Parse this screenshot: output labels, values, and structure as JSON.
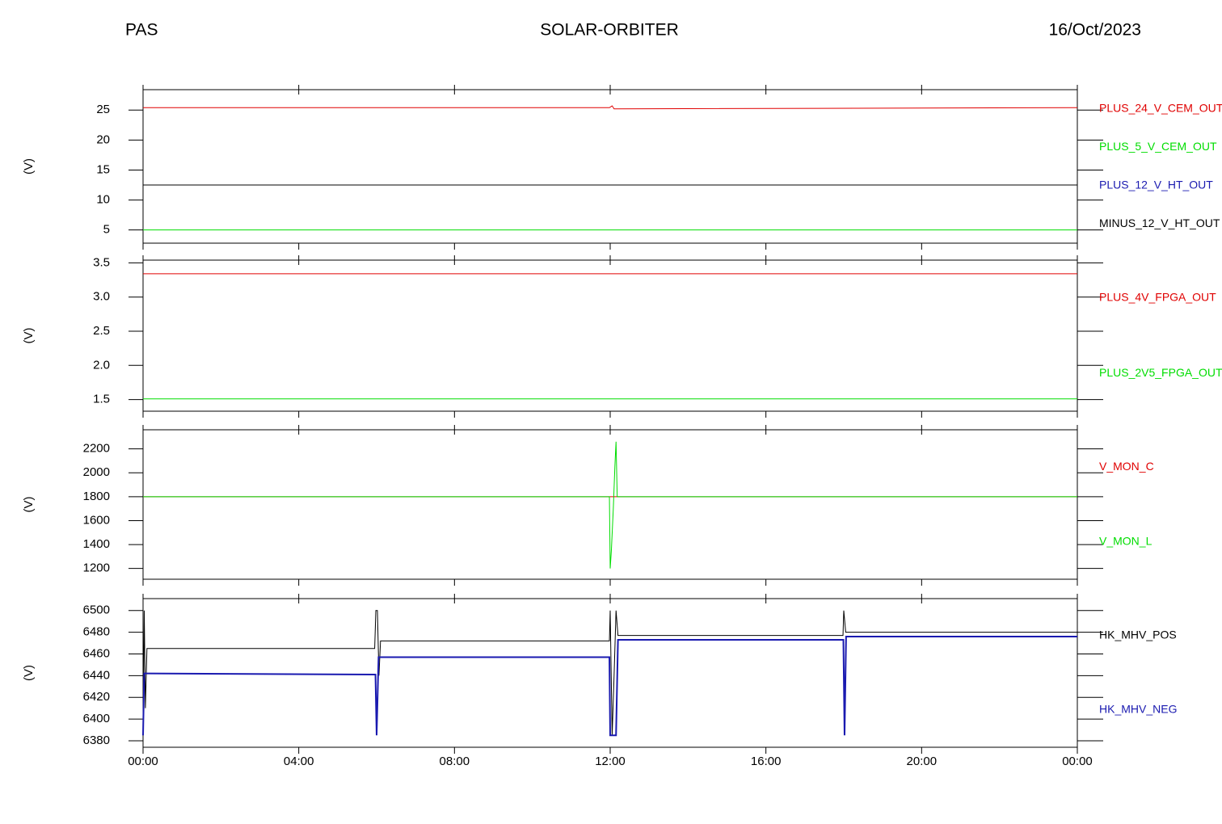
{
  "header": {
    "left": "PAS",
    "center": "SOLAR-ORBITER",
    "right": "16/Oct/2023"
  },
  "chart_data": [
    {
      "type": "line",
      "y_label": "(V)",
      "xlim": [
        0,
        24
      ],
      "xticks": [
        0,
        4,
        8,
        12,
        16,
        20,
        24
      ],
      "ylim": [
        2.8,
        28.4
      ],
      "yticks": [
        5,
        10,
        15,
        20,
        25
      ],
      "series": [
        {
          "name": "PLUS_24_V_CEM_OUT",
          "color": "#e00000",
          "x": [
            0,
            11.98,
            12.05,
            12.1,
            24
          ],
          "values": [
            25.4,
            25.4,
            25.7,
            25.2,
            25.4
          ]
        },
        {
          "name": "PLUS_5_V_CEM_OUT",
          "color": "#00dd00",
          "x": [
            0,
            24
          ],
          "values": [
            5.0,
            5.0
          ]
        },
        {
          "name": "PLUS_12_V_HT_OUT",
          "color": "#1a1ab0",
          "x": [
            0,
            24
          ],
          "values": [
            12.5,
            12.5
          ]
        },
        {
          "name": "MINUS_12_V_HT_OUT",
          "color": "#000000",
          "x": [
            0,
            24
          ],
          "values": [
            12.5,
            12.5
          ]
        }
      ]
    },
    {
      "type": "line",
      "y_label": "(V)",
      "xlim": [
        0,
        24
      ],
      "xticks": [
        0,
        4,
        8,
        12,
        16,
        20,
        24
      ],
      "ylim": [
        1.33,
        3.54
      ],
      "yticks": [
        1.5,
        {
          "value": 2,
          "label": "2.0"
        },
        2.5,
        {
          "value": 3,
          "label": "3.0"
        },
        3.5
      ],
      "series": [
        {
          "name": "PLUS_4V_FPGA_OUT",
          "color": "#e00000",
          "x": [
            0,
            24
          ],
          "values": [
            3.34,
            3.34
          ]
        },
        {
          "name": "PLUS_2V5_FPGA_OUT",
          "color": "#00dd00",
          "x": [
            0,
            24
          ],
          "values": [
            1.51,
            1.51
          ]
        }
      ]
    },
    {
      "type": "line",
      "y_label": "(V)",
      "xlim": [
        0,
        24
      ],
      "xticks": [
        0,
        4,
        8,
        12,
        16,
        20,
        24
      ],
      "ylim": [
        1110,
        2360
      ],
      "yticks": [
        1200,
        1400,
        1600,
        1800,
        2000,
        2200
      ],
      "series": [
        {
          "name": "V_MON_C",
          "color": "#e00000",
          "x": [
            0,
            24
          ],
          "values": [
            1800,
            1800
          ]
        },
        {
          "name": "V_MON_L",
          "color": "#00dd00",
          "x": [
            0,
            11.98,
            12.0,
            12.03,
            12.08,
            12.12,
            12.15,
            12.18,
            24
          ],
          "values": [
            1800,
            1800,
            1200,
            1350,
            1700,
            2050,
            2260,
            1800,
            1800
          ]
        }
      ]
    },
    {
      "type": "line",
      "y_label": "(V)",
      "xlim": [
        0,
        24
      ],
      "xticks": [
        {
          "value": 0,
          "label": "00:00"
        },
        {
          "value": 4,
          "label": "04:00"
        },
        {
          "value": 8,
          "label": "08:00"
        },
        {
          "value": 12,
          "label": "12:00"
        },
        {
          "value": 16,
          "label": "16:00"
        },
        {
          "value": 20,
          "label": "20:00"
        },
        {
          "value": 24,
          "label": "00:00"
        }
      ],
      "ylim": [
        6374,
        6511
      ],
      "yticks": [
        6380,
        6400,
        6420,
        6440,
        6460,
        6480,
        6500
      ],
      "series": [
        {
          "name": "HK_MHV_POS",
          "color": "#000000",
          "x": [
            0,
            0.03,
            0.06,
            0.1,
            5.95,
            5.98,
            6.02,
            6.06,
            6.1,
            11.98,
            12.0,
            12.05,
            12.1,
            12.15,
            12.2,
            17.98,
            18.0,
            18.05,
            18.1,
            24
          ],
          "values": [
            6385,
            6500,
            6410,
            6465,
            6465,
            6500,
            6500,
            6440,
            6472,
            6472,
            6500,
            6385,
            6440,
            6500,
            6477,
            6477,
            6500,
            6480,
            6480,
            6480
          ]
        },
        {
          "name": "HK_MHV_NEG",
          "color": "#1a1ab0",
          "x": [
            0,
            0.03,
            0.06,
            5.97,
            6.0,
            6.05,
            11.98,
            12.0,
            12.15,
            12.2,
            17.99,
            18.02,
            18.06,
            24
          ],
          "values": [
            6385,
            6442,
            6442,
            6441,
            6385,
            6457,
            6457,
            6385,
            6385,
            6473,
            6473,
            6385,
            6476,
            6476
          ]
        }
      ]
    }
  ]
}
